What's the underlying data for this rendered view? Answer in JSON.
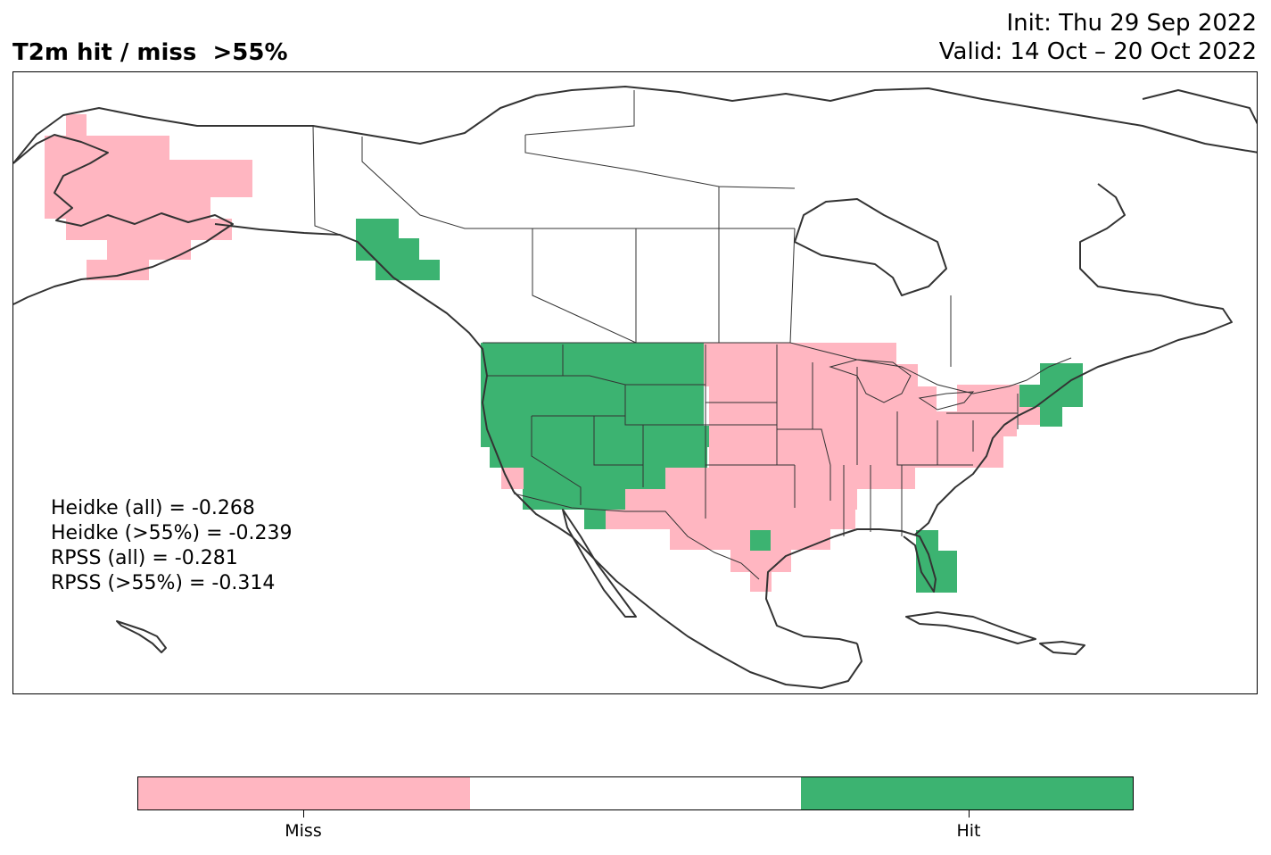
{
  "title": "T2m hit / miss  >55%",
  "init_text": "Init: Thu 29 Sep 2022",
  "valid_text": "Valid: 14 Oct – 20 Oct 2022",
  "stats": [
    "Heidke (all) = -0.268",
    "Heidke (>55%) = -0.239",
    "RPSS (all) = -0.281",
    "RPSS (>55%) = -0.314"
  ],
  "colorbar": {
    "segments": [
      {
        "label": "Miss",
        "color": "#ffb6c1"
      },
      {
        "label": "",
        "color": "#ffffff"
      },
      {
        "label": "Hit",
        "color": "#3cb371"
      }
    ]
  },
  "colors": {
    "miss": "#ffb6c1",
    "hit": "#3cb371",
    "coast": "#333333"
  }
}
